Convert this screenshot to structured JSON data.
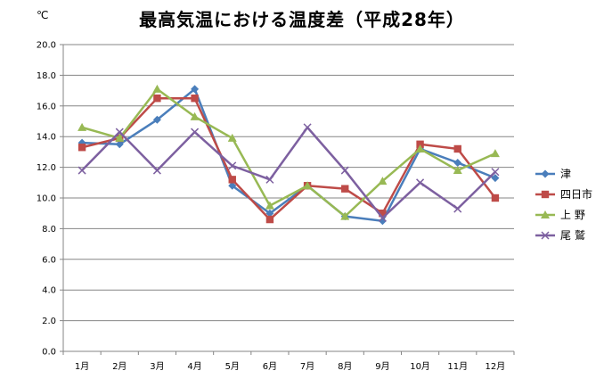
{
  "chart_data": {
    "type": "line",
    "title": "最高気温における温度差（平成28年）",
    "ylabel": "℃",
    "xlabel": "",
    "ylim": [
      0,
      20
    ],
    "yticks": [
      "0.0",
      "2.0",
      "4.0",
      "6.0",
      "8.0",
      "10.0",
      "12.0",
      "14.0",
      "16.0",
      "18.0",
      "20.0"
    ],
    "categories": [
      "1月",
      "2月",
      "3月",
      "4月",
      "5月",
      "6月",
      "7月",
      "8月",
      "9月",
      "10月",
      "11月",
      "12月"
    ],
    "grid": true,
    "legend_position": "right",
    "series": [
      {
        "name": "津",
        "color": "#4a7ebb",
        "marker": "diamond",
        "values": [
          13.6,
          13.5,
          15.1,
          17.1,
          10.8,
          9.0,
          10.8,
          8.8,
          8.5,
          13.2,
          12.3,
          11.3
        ]
      },
      {
        "name": "四日市",
        "color": "#be4b48",
        "marker": "square",
        "values": [
          13.3,
          13.9,
          16.5,
          16.5,
          11.2,
          8.6,
          10.8,
          10.6,
          9.0,
          13.5,
          13.2,
          10.0
        ]
      },
      {
        "name": "上 野",
        "color": "#98b954",
        "marker": "triangle",
        "values": [
          14.6,
          13.9,
          17.1,
          15.3,
          13.9,
          9.5,
          10.8,
          8.8,
          11.1,
          13.2,
          11.8,
          12.9
        ]
      },
      {
        "name": "尾 鷲",
        "color": "#7d60a0",
        "marker": "x",
        "values": [
          11.8,
          14.3,
          11.8,
          14.3,
          12.1,
          11.2,
          14.6,
          11.8,
          8.7,
          11.0,
          9.3,
          11.7
        ]
      }
    ]
  }
}
